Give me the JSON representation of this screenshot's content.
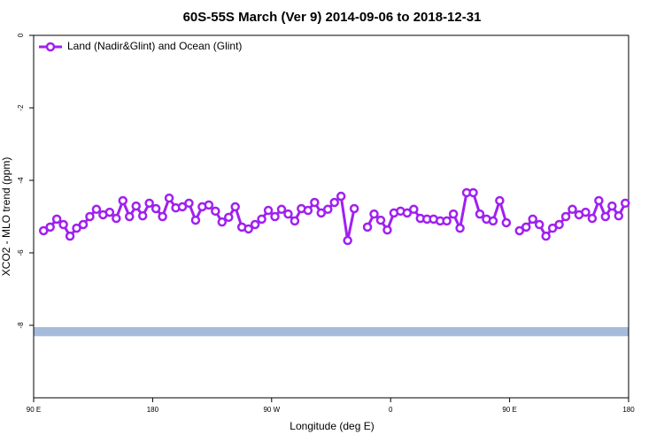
{
  "chart_data": {
    "type": "line",
    "title": "60S-55S March (Ver 9)   2014-09-06 to 2018-12-31",
    "xlabel": "Longitude (deg E)",
    "ylabel": "XCO2 - MLO trend (ppm)",
    "x": [
      97.5,
      102.5,
      107.5,
      112.5,
      117.5,
      122.5,
      127.5,
      132.5,
      137.5,
      142.5,
      147.5,
      152.5,
      157.5,
      162.5,
      167.5,
      172.5,
      177.5,
      182.5,
      187.5,
      192.5,
      197.5,
      202.5,
      207.5,
      212.5,
      217.5,
      222.5,
      227.5,
      232.5,
      237.5,
      242.5,
      247.5,
      252.5,
      257.5,
      262.5,
      267.5,
      272.5,
      277.5,
      282.5,
      287.5,
      292.5,
      297.5,
      302.5,
      307.5,
      312.5,
      317.5,
      322.5,
      327.5,
      332.5,
      337.5,
      342.5,
      347.5,
      352.5,
      357.5,
      362.5,
      367.5,
      372.5,
      377.5,
      382.5,
      387.5,
      392.5,
      397.5,
      402.5,
      407.5,
      412.5,
      417.5,
      422.5,
      427.5,
      432.5,
      437.5,
      442.5,
      447.5,
      452.5,
      457.5,
      462.5,
      467.5,
      472.5,
      477.5,
      482.5,
      487.5,
      492.5,
      497.5,
      502.5,
      507.5,
      512.5,
      517.5,
      522.5,
      527.5,
      532.5,
      537.5
    ],
    "series": [
      {
        "name": "Land (Nadir&Glint) and Ocean (Glint)",
        "color": "#a020f0",
        "values": [
          -5.39,
          -5.29,
          -5.07,
          -5.22,
          -5.54,
          -5.32,
          -5.22,
          -5.0,
          -4.8,
          -4.95,
          -4.88,
          -5.05,
          -4.56,
          -5.0,
          -4.71,
          -4.98,
          -4.63,
          -4.78,
          -5.0,
          -4.49,
          -4.76,
          -4.73,
          -4.63,
          -5.1,
          -4.73,
          -4.68,
          -4.85,
          -5.15,
          -5.02,
          -4.73,
          -5.29,
          -5.34,
          -5.22,
          -5.07,
          -4.83,
          -5.0,
          -4.8,
          -4.93,
          -5.12,
          -4.78,
          -4.83,
          -4.61,
          -4.9,
          -4.8,
          -4.61,
          -4.44,
          -5.66,
          -4.78,
          null,
          -5.29,
          -4.93,
          -5.1,
          -5.37,
          -4.9,
          -4.85,
          -4.9,
          -4.8,
          -5.05,
          -5.07,
          -5.07,
          -5.12,
          -5.12,
          -4.93,
          -5.32,
          -4.34,
          -4.34,
          -4.93,
          -5.07,
          -5.12,
          -4.56,
          -5.17,
          null,
          -5.39,
          -5.29,
          -5.07,
          -5.22,
          -5.54,
          -5.32,
          -5.22,
          -5.0,
          -4.8,
          -4.95,
          -4.88,
          -5.05,
          -4.56,
          -5.0,
          -4.71,
          -4.98,
          -4.63
        ]
      }
    ],
    "band": {
      "range": [
        -8.3,
        -8.05
      ],
      "color": "#a5bbdc"
    },
    "xlim": [
      90,
      540
    ],
    "xticks": [
      {
        "value": 90,
        "label": "90 E"
      },
      {
        "value": 180,
        "label": "180"
      },
      {
        "value": 270,
        "label": "90 W"
      },
      {
        "value": 360,
        "label": "0"
      },
      {
        "value": 450,
        "label": "90 E"
      },
      {
        "value": 540,
        "label": "180"
      }
    ],
    "ylim": [
      -10,
      0
    ],
    "yticks": [
      0,
      -2,
      -4,
      -6,
      -8
    ],
    "legend": "top-left"
  }
}
